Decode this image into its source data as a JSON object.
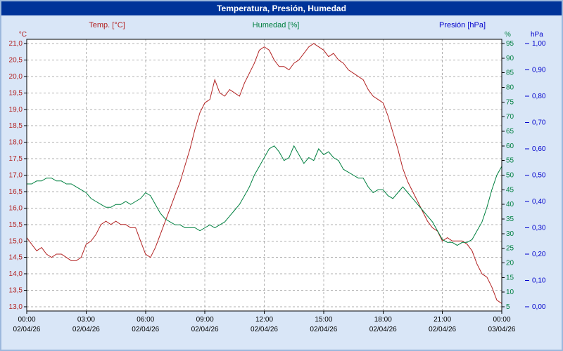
{
  "title": "Temperatura, Presión, Humedad",
  "colors": {
    "title_bar_bg": "#003399",
    "title_text": "#ffffff",
    "frame_bg": "#d9e6f7",
    "frame_border": "#9cb8dc",
    "plot_bg": "#ffffff",
    "grid": "#b0b0b0",
    "axis": "#000000",
    "tick_text": "#000000"
  },
  "chart_data": {
    "type": "line",
    "title": "Temperatura, Presión, Humedad",
    "grid": true,
    "legend_position": "top",
    "x_axis": {
      "hours_span": 24,
      "grid_interval_hours": 3,
      "ticks": [
        {
          "time": "00:00",
          "date": "02/04/26"
        },
        {
          "time": "03:00",
          "date": "02/04/26"
        },
        {
          "time": "06:00",
          "date": "02/04/26"
        },
        {
          "time": "09:00",
          "date": "02/04/26"
        },
        {
          "time": "12:00",
          "date": "02/04/26"
        },
        {
          "time": "15:00",
          "date": "02/04/26"
        },
        {
          "time": "18:00",
          "date": "02/04/26"
        },
        {
          "time": "21:00",
          "date": "02/04/26"
        },
        {
          "time": "00:00",
          "date": "03/04/26"
        }
      ]
    },
    "axes": {
      "temperature": {
        "label": "Temp. [°C]",
        "unit": "°C",
        "side": "left",
        "min": 13.0,
        "max": 21.0,
        "tick_step": 0.5,
        "tick_labels": [
          "21,0",
          "20,5",
          "20,0",
          "19,5",
          "19,0",
          "18,5",
          "18,0",
          "17,5",
          "17,0",
          "16,5",
          "16,0",
          "15,5",
          "15,0",
          "14,5",
          "14,0",
          "13,5",
          "13,0"
        ]
      },
      "humidity": {
        "label": "Humedad [%]",
        "unit": "%",
        "side": "right",
        "min": 5,
        "max": 95,
        "tick_step": 5,
        "tick_labels": [
          "95",
          "90",
          "85",
          "80",
          "75",
          "70",
          "65",
          "60",
          "55",
          "50",
          "45",
          "40",
          "35",
          "30",
          "25",
          "20",
          "15",
          "10",
          "5"
        ]
      },
      "pressure": {
        "label": "Presión [hPa]",
        "unit": "hPa",
        "side": "far-right",
        "min": 0.0,
        "max": 1.0,
        "tick_step": 0.1,
        "tick_labels": [
          "1,00",
          "0,90",
          "0,80",
          "0,70",
          "0,60",
          "0,50",
          "0,40",
          "0,30",
          "0,20",
          "0,10",
          "0,00"
        ]
      }
    },
    "series": [
      {
        "name": "Temp. [°C]",
        "axis": "temperature",
        "color": "#b22222",
        "x_step_hours": 0.25,
        "values": [
          15.1,
          14.9,
          14.7,
          14.8,
          14.6,
          14.5,
          14.6,
          14.6,
          14.5,
          14.4,
          14.4,
          14.5,
          14.9,
          15.0,
          15.2,
          15.5,
          15.6,
          15.5,
          15.6,
          15.5,
          15.5,
          15.4,
          15.4,
          15.0,
          14.6,
          14.5,
          14.8,
          15.2,
          15.6,
          16.0,
          16.4,
          16.8,
          17.3,
          17.8,
          18.4,
          18.9,
          19.2,
          19.3,
          19.9,
          19.5,
          19.4,
          19.6,
          19.5,
          19.4,
          19.8,
          20.1,
          20.4,
          20.8,
          20.9,
          20.8,
          20.5,
          20.3,
          20.3,
          20.2,
          20.4,
          20.5,
          20.7,
          20.9,
          21.0,
          20.9,
          20.8,
          20.6,
          20.7,
          20.5,
          20.4,
          20.2,
          20.1,
          20.0,
          19.9,
          19.6,
          19.4,
          19.3,
          19.2,
          18.8,
          18.3,
          17.8,
          17.2,
          16.8,
          16.5,
          16.2,
          15.9,
          15.6,
          15.4,
          15.3,
          15.0,
          15.1,
          15.0,
          15.0,
          15.0,
          14.9,
          14.7,
          14.3,
          14.0,
          13.9,
          13.6,
          13.2,
          13.1
        ]
      },
      {
        "name": "Humedad [%]",
        "axis": "humidity",
        "color": "#008040",
        "x_step_hours": 0.25,
        "values": [
          47,
          47,
          48,
          48,
          49,
          49,
          48,
          48,
          47,
          47,
          46,
          45,
          44,
          42,
          41,
          40,
          39,
          39,
          40,
          40,
          41,
          40,
          41,
          42,
          44,
          43,
          40,
          37,
          35,
          34,
          33,
          33,
          32,
          32,
          32,
          31,
          32,
          33,
          32,
          33,
          34,
          36,
          38,
          40,
          43,
          46,
          50,
          53,
          56,
          59,
          60,
          58,
          55,
          56,
          60,
          57,
          54,
          56,
          55,
          59,
          57,
          58,
          56,
          55,
          52,
          51,
          50,
          49,
          49,
          46,
          44,
          45,
          45,
          43,
          42,
          44,
          46,
          44,
          42,
          40,
          38,
          36,
          34,
          31,
          28,
          27,
          27,
          26,
          27,
          27,
          28,
          31,
          34,
          39,
          45,
          50,
          53
        ]
      },
      {
        "name": "Presión [hPa]",
        "axis": "pressure",
        "color": "#0000cc",
        "x_step_hours": 0.25,
        "values": []
      }
    ]
  }
}
